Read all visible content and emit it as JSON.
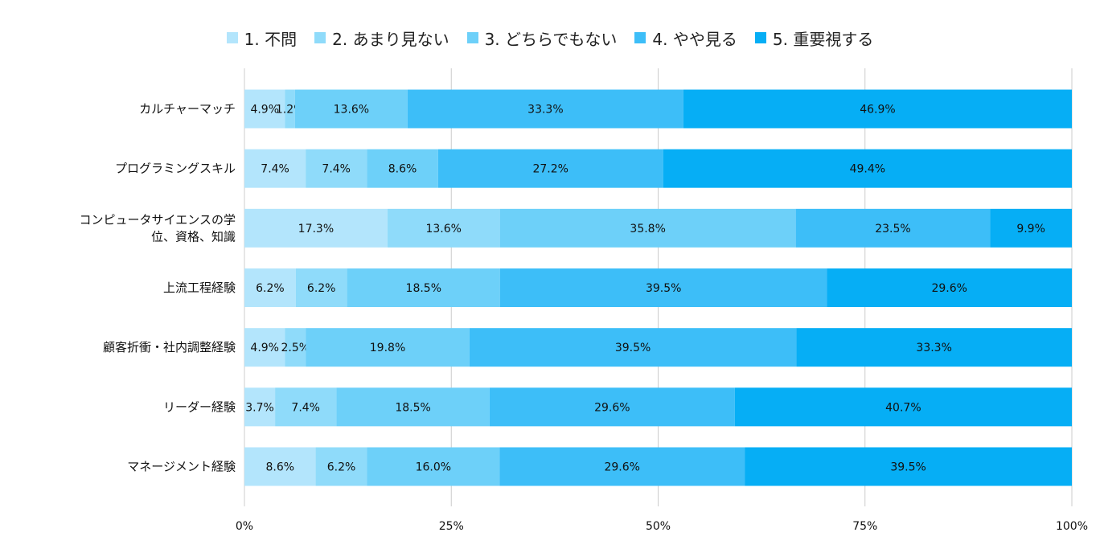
{
  "chart_data": {
    "type": "bar",
    "orientation": "horizontal",
    "stacked": "percent",
    "legend_position": "top",
    "grid": true,
    "xlim": [
      0,
      100
    ],
    "x_ticks": [
      "0%",
      "25%",
      "50%",
      "75%",
      "100%"
    ],
    "categories": [
      [
        "カルチャーマッチ"
      ],
      [
        "プログラミングスキル"
      ],
      [
        "コンピュータサイエンスの学",
        "位、資格、知識"
      ],
      [
        "上流工程経験"
      ],
      [
        "顧客折衝・社内調整経験"
      ],
      [
        "リーダー経験"
      ],
      [
        "マネージメント経験"
      ]
    ],
    "series": [
      {
        "name": "1. 不問",
        "color": "#b3e5fc",
        "values": [
          4.9,
          7.4,
          17.3,
          6.2,
          4.9,
          3.7,
          8.6
        ]
      },
      {
        "name": "2. あまり見ない",
        "color": "#8fdbfa",
        "values": [
          1.2,
          7.4,
          13.6,
          6.2,
          2.5,
          7.4,
          6.2
        ]
      },
      {
        "name": "3. どちらでもない",
        "color": "#6dd0f9",
        "values": [
          13.6,
          8.6,
          35.8,
          18.5,
          19.8,
          18.5,
          16.0
        ]
      },
      {
        "name": "4. やや見る",
        "color": "#3dbef8",
        "values": [
          33.3,
          27.2,
          23.5,
          39.5,
          39.5,
          29.6,
          29.6
        ]
      },
      {
        "name": "5. 重要視する",
        "color": "#06aef5",
        "values": [
          46.9,
          49.4,
          9.9,
          29.6,
          33.3,
          40.7,
          39.5
        ]
      }
    ]
  }
}
